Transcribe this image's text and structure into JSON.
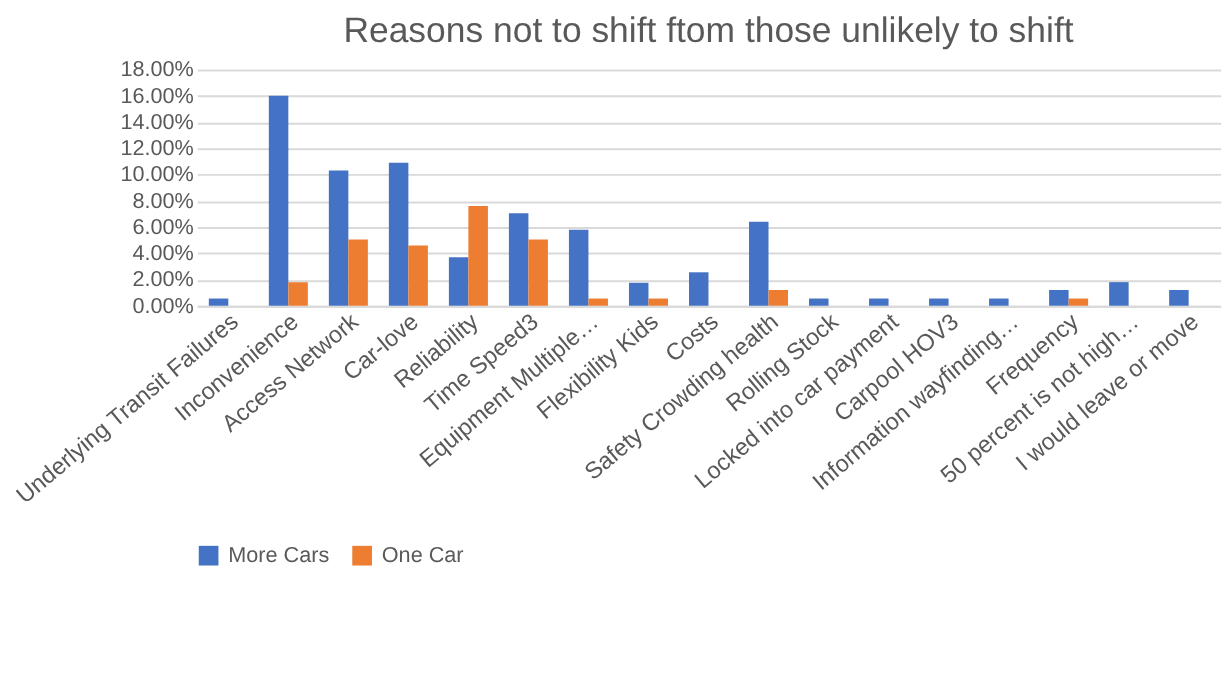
{
  "chart_data": {
    "type": "bar",
    "title": "Reasons not to shift ftom those unlikely to shift",
    "categories": [
      "Underlying Transit Failures",
      "Inconvenience",
      "Access Network",
      "Car-love",
      "Reliability",
      "Time Speed3",
      "Equipment Multiple…",
      "Flexibility Kids",
      "Costs",
      "Safety Crowding health",
      "Rolling Stock",
      "Locked into car payment",
      "Carpool HOV3",
      "Information wayfinding…",
      "Frequency",
      "50 percent is not high…",
      "I would leave or move"
    ],
    "series": [
      {
        "name": "More Cars",
        "color": "#4472c4",
        "values": [
          0.55,
          16.0,
          10.3,
          10.9,
          3.7,
          7.05,
          5.8,
          1.75,
          2.55,
          6.4,
          0.55,
          0.55,
          0.55,
          0.55,
          1.2,
          1.8,
          1.2
        ]
      },
      {
        "name": "One Car",
        "color": "#ed7d31",
        "values": [
          0,
          1.8,
          5.05,
          4.6,
          7.6,
          5.05,
          0.55,
          0.55,
          0,
          1.2,
          0,
          0,
          0,
          0,
          0.55,
          0,
          0
        ]
      }
    ],
    "ylim": [
      0,
      18
    ],
    "yticks": [
      {
        "value": 0,
        "label": "0.00%"
      },
      {
        "value": 2,
        "label": "2.00%"
      },
      {
        "value": 4,
        "label": "4.00%"
      },
      {
        "value": 6,
        "label": "6.00%"
      },
      {
        "value": 8,
        "label": "8.00%"
      },
      {
        "value": 10,
        "label": "10.00%"
      },
      {
        "value": 12,
        "label": "12.00%"
      },
      {
        "value": 14,
        "label": "14.00%"
      },
      {
        "value": 16,
        "label": "16.00%"
      },
      {
        "value": 18,
        "label": "18.00%"
      }
    ],
    "grid": "y",
    "legend": "bottom"
  }
}
